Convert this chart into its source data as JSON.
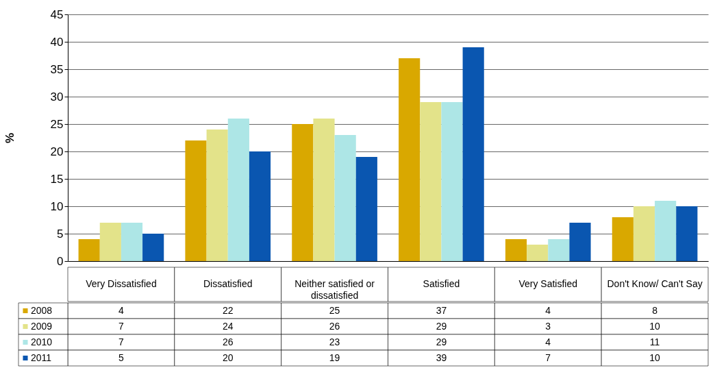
{
  "chart_data": {
    "type": "bar",
    "ylabel": "%",
    "categories": [
      "Very Dissatisfied",
      "Dissatisfied",
      "Neither satisfied or dissatisfied",
      "Satisfied",
      "Very Satisfied",
      "Don't Know/ Can't Say"
    ],
    "series": [
      {
        "name": "2008",
        "color": "#d9a800",
        "values": [
          4,
          22,
          25,
          37,
          4,
          8
        ]
      },
      {
        "name": "2009",
        "color": "#e3e38a",
        "values": [
          7,
          24,
          26,
          29,
          3,
          10
        ]
      },
      {
        "name": "2010",
        "color": "#ade6e6",
        "values": [
          7,
          26,
          23,
          29,
          4,
          11
        ]
      },
      {
        "name": "2011",
        "color": "#0a56b0",
        "values": [
          5,
          20,
          19,
          39,
          7,
          10
        ]
      }
    ],
    "ylim": [
      0,
      45
    ],
    "yticks": [
      0,
      5,
      10,
      15,
      20,
      25,
      30,
      35,
      40,
      45
    ],
    "grid": "y",
    "legend": "bottom left",
    "data_labels": true
  }
}
